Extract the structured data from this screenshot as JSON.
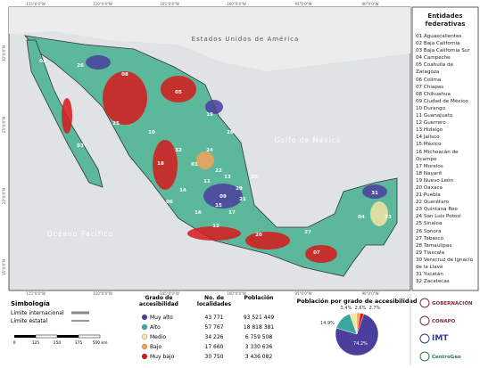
{
  "map": {
    "country_label": "Estados Unidos de América",
    "gulf_label": "Golfo de México",
    "ocean_label": "Océano Pacífico",
    "lon_labels": [
      "115°0'0\"W",
      "110°0'0\"W",
      "105°0'0\"W",
      "100°0'0\"W",
      "95°0'0\"W",
      "90°0'0\"W"
    ],
    "lat_labels": [
      "30°0'0\"N",
      "25°0'0\"N",
      "20°0'0\"N",
      "15°0'0\"N"
    ],
    "state_labels": [
      "01",
      "02",
      "03",
      "04",
      "05",
      "06",
      "07",
      "08",
      "09",
      "10",
      "11",
      "12",
      "13",
      "14",
      "15",
      "16",
      "17",
      "18",
      "19",
      "20",
      "21",
      "22",
      "23",
      "24",
      "25",
      "26",
      "27",
      "28",
      "29",
      "30",
      "31",
      "32"
    ]
  },
  "sidebar": {
    "title": "Entidades federativas",
    "entities": [
      "01 Aguascalientes",
      "02 Baja California",
      "03 Baja California Sur",
      "04 Campeche",
      "05 Coahuila de Zaragoza",
      "06 Colima",
      "07 Chiapas",
      "08 Chihuahua",
      "09 Ciudad de México",
      "10 Durango",
      "11 Guanajuato",
      "12 Guerrero",
      "13 Hidalgo",
      "14 Jalisco",
      "15 México",
      "16 Michoacán de Ocampo",
      "17 Morelos",
      "18 Nayarit",
      "19 Nuevo León",
      "20 Oaxaca",
      "21 Puebla",
      "22 Querétaro",
      "23 Quintana Roo",
      "24 San Luis Potosí",
      "25 Sinaloa",
      "26 Sonora",
      "27 Tabasco",
      "28 Tamaulipas",
      "29 Tlaxcala",
      "30 Veracruz de Ignacio de la Llave",
      "31 Yucatán",
      "32 Zacatecas"
    ]
  },
  "legend": {
    "title": "Simbología",
    "items": [
      "Límite internacional",
      "Límite estatal"
    ],
    "scale_labels": [
      "0",
      "125",
      "250",
      "375",
      "500 km"
    ]
  },
  "table": {
    "headers": [
      "Grado de accesibilidad",
      "No. de localidades",
      "Población"
    ],
    "rows": [
      [
        "Muy alto",
        "43 771",
        "93 521 449"
      ],
      [
        "Alto",
        "57 767",
        "18 818 381"
      ],
      [
        "Medio",
        "34 226",
        "6 759 508"
      ],
      [
        "Bajo",
        "17 660",
        "3 330 636"
      ],
      [
        "Muy bajo",
        "30 750",
        "3 436 082"
      ]
    ]
  },
  "chart_data": {
    "type": "pie",
    "title": "Población por grado de accesibilidad",
    "values": [
      74.2,
      14.9,
      5.4,
      2.6,
      2.7
    ],
    "value_labels": [
      "74.2%",
      "14.9%",
      "5.4%",
      "2.6%",
      "2.7%"
    ],
    "colors": [
      "#4b3f9e",
      "#3aa8a0",
      "#f1e6a2",
      "#f4a259",
      "#d7191c"
    ]
  },
  "logos": [
    "GOBERNACIÓN",
    "CONAPO",
    "IMT",
    "CentroGeo"
  ]
}
